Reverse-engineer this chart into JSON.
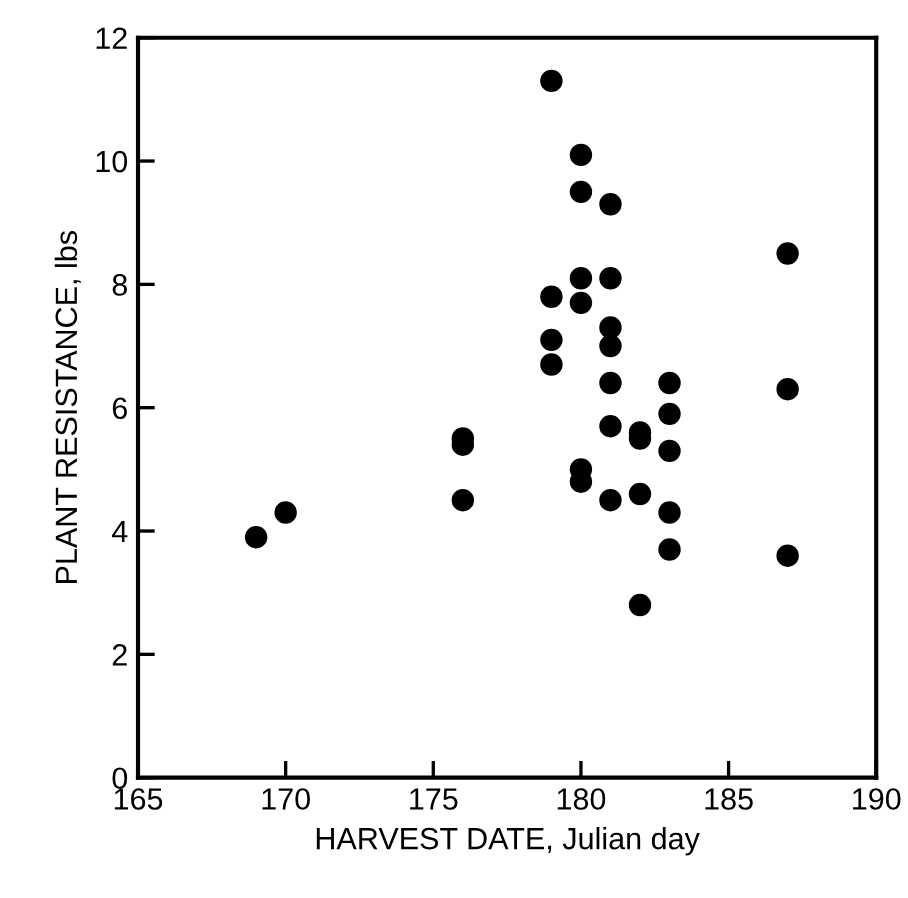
{
  "chart_data": {
    "type": "scatter",
    "xlabel": "HARVEST DATE, Julian day",
    "ylabel": "PLANT RESISTANCE, lbs",
    "x": [
      169,
      170,
      176,
      176,
      176,
      179,
      179,
      179,
      179,
      180,
      180,
      180,
      180,
      180,
      180,
      181,
      181,
      181,
      181,
      181,
      181,
      181,
      182,
      182,
      182,
      182,
      183,
      183,
      183,
      183,
      183,
      187,
      187,
      187
    ],
    "values": [
      3.9,
      4.3,
      5.5,
      5.4,
      4.5,
      11.3,
      7.8,
      7.1,
      6.7,
      10.1,
      9.5,
      8.1,
      7.7,
      5.0,
      4.8,
      9.3,
      8.1,
      7.3,
      7.0,
      6.4,
      5.7,
      4.5,
      5.6,
      5.5,
      4.6,
      2.8,
      6.4,
      5.9,
      5.3,
      4.3,
      3.7,
      8.5,
      6.3,
      3.6
    ],
    "color": "#000000",
    "marker": "circle",
    "xlim": [
      165,
      190
    ],
    "ylim": [
      0,
      12
    ],
    "xticks": [
      165,
      170,
      175,
      180,
      185,
      190
    ],
    "yticks": [
      0,
      2,
      4,
      6,
      8,
      10,
      12
    ],
    "grid": false,
    "legend": false
  }
}
